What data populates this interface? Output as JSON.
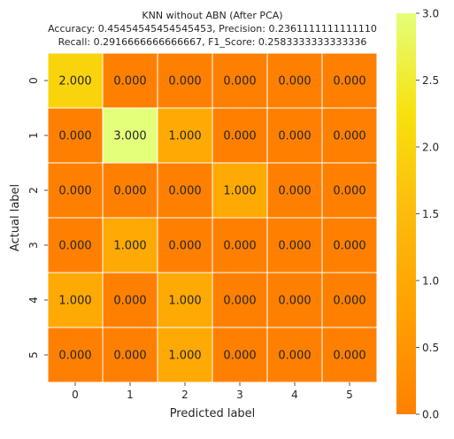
{
  "chart_data": {
    "type": "heatmap",
    "title_lines": [
      "KNN without ABN (After PCA)",
      "Accuracy: 0.45454545454545453, Precision: 0.2361111111111110",
      "Recall: 0.2916666666666667, F1_Score: 0.2583333333333336"
    ],
    "xlabel": "Predicted label",
    "ylabel": "Actual label",
    "x_categories": [
      "0",
      "1",
      "2",
      "3",
      "4",
      "5"
    ],
    "y_categories": [
      "0",
      "1",
      "2",
      "3",
      "4",
      "5"
    ],
    "values": [
      [
        2,
        0,
        0,
        0,
        0,
        0
      ],
      [
        0,
        3,
        1,
        0,
        0,
        0
      ],
      [
        0,
        0,
        0,
        1,
        0,
        0
      ],
      [
        0,
        1,
        0,
        0,
        0,
        0
      ],
      [
        1,
        0,
        1,
        0,
        0,
        0
      ],
      [
        0,
        0,
        1,
        0,
        0,
        0
      ]
    ],
    "value_format": "0.000",
    "colormap": "Wistia",
    "vmin": 0,
    "vmax": 3,
    "colorbar_ticks": [
      0.0,
      0.5,
      1.0,
      1.5,
      2.0,
      2.5,
      3.0
    ],
    "grid": true,
    "grid_color": "#ffffff"
  }
}
